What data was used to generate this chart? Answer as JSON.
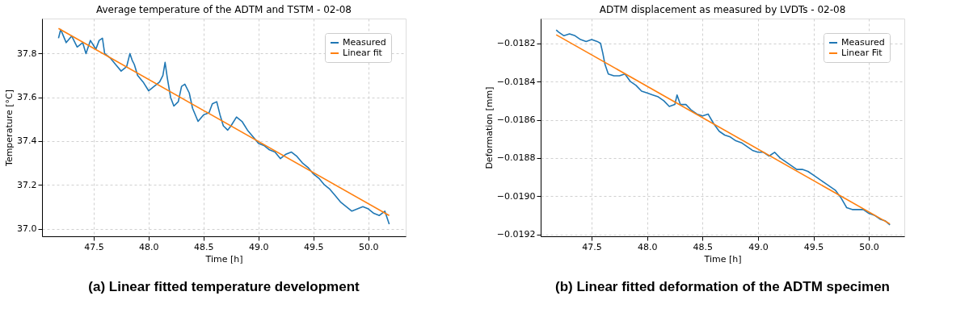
{
  "chart_data": [
    {
      "type": "line",
      "title": "Average temperature of the ADTM and TSTM - 02-08",
      "xlabel": "Time [h]",
      "ylabel": "Temperature [°C]",
      "annotations": [
        "(a) Linear fitted temperature development"
      ],
      "xlim": [
        47.03,
        50.34
      ],
      "xticks": [
        47.5,
        {
          "value": 48,
          "label": "48.0"
        },
        48.5,
        {
          "value": 49,
          "label": "49.0"
        },
        49.5,
        {
          "value": 50,
          "label": "50.0"
        }
      ],
      "ylim": [
        36.965,
        37.96
      ],
      "yticks": [
        {
          "value": 37,
          "label": "37.0"
        },
        37.2,
        37.4,
        37.6,
        37.8
      ],
      "grid": true,
      "legend": "top right",
      "line_style": "solid",
      "marker": "none",
      "series": [
        {
          "name": "Measured",
          "color": "#1f77b4",
          "x": [
            47.18,
            47.2,
            47.25,
            47.3,
            47.35,
            47.4,
            47.43,
            47.47,
            47.52,
            47.55,
            47.58,
            47.6,
            47.65,
            47.7,
            47.75,
            47.8,
            47.83,
            47.85,
            47.87,
            47.9,
            47.95,
            48.0,
            48.05,
            48.1,
            48.13,
            48.15,
            48.17,
            48.2,
            48.23,
            48.27,
            48.3,
            48.33,
            48.37,
            48.4,
            48.45,
            48.5,
            48.55,
            48.58,
            48.62,
            48.65,
            48.68,
            48.72,
            48.75,
            48.8,
            48.85,
            48.9,
            48.95,
            49.0,
            49.05,
            49.1,
            49.15,
            49.2,
            49.25,
            49.3,
            49.35,
            49.4,
            49.45,
            49.5,
            49.55,
            49.6,
            49.65,
            49.7,
            49.75,
            49.8,
            49.85,
            49.9,
            49.95,
            50.0,
            50.05,
            50.1,
            50.15,
            50.19
          ],
          "values": [
            37.87,
            37.91,
            37.85,
            37.88,
            37.83,
            37.85,
            37.8,
            37.86,
            37.82,
            37.86,
            37.87,
            37.8,
            37.78,
            37.75,
            37.72,
            37.74,
            37.8,
            37.77,
            37.75,
            37.7,
            37.67,
            37.63,
            37.65,
            37.67,
            37.7,
            37.76,
            37.69,
            37.6,
            37.56,
            37.58,
            37.65,
            37.66,
            37.62,
            37.55,
            37.49,
            37.52,
            37.53,
            37.57,
            37.58,
            37.52,
            37.47,
            37.45,
            37.47,
            37.51,
            37.49,
            37.45,
            37.42,
            37.39,
            37.38,
            37.36,
            37.35,
            37.32,
            37.34,
            37.35,
            37.33,
            37.3,
            37.28,
            37.25,
            37.23,
            37.2,
            37.18,
            37.15,
            37.12,
            37.1,
            37.08,
            37.09,
            37.1,
            37.09,
            37.07,
            37.06,
            37.08,
            37.02
          ]
        },
        {
          "name": "Linear fit",
          "color": "#ff7f0e",
          "x": [
            47.18,
            50.19
          ],
          "values": [
            37.915,
            37.06
          ]
        }
      ]
    },
    {
      "type": "line",
      "title": "ADTM displacement as measured by LVDTs - 02-08",
      "xlabel": "Time [h]",
      "ylabel": "Deformation [mm]",
      "annotations": [
        "(b) Linear fitted deformation of the ADTM specimen"
      ],
      "xlim": [
        47.04,
        50.32
      ],
      "xticks": [
        47.5,
        {
          "value": 48,
          "label": "48.0"
        },
        48.5,
        {
          "value": 49,
          "label": "49.0"
        },
        49.5,
        {
          "value": 50,
          "label": "50.0"
        }
      ],
      "ylim": [
        -0.01921,
        -0.01807
      ],
      "yticks": [
        {
          "value": -0.0192,
          "label": "−0.0192"
        },
        {
          "value": -0.019,
          "label": "−0.0190"
        },
        {
          "value": -0.0188,
          "label": "−0.0188"
        },
        {
          "value": -0.0186,
          "label": "−0.0186"
        },
        {
          "value": -0.0184,
          "label": "−0.0184"
        },
        {
          "value": -0.0182,
          "label": "−0.0182"
        }
      ],
      "grid": true,
      "legend": "top right",
      "line_style": "solid",
      "marker": "none",
      "series": [
        {
          "name": "Measured",
          "color": "#1f77b4",
          "x": [
            47.18,
            47.2,
            47.25,
            47.3,
            47.35,
            47.4,
            47.45,
            47.5,
            47.55,
            47.58,
            47.6,
            47.62,
            47.65,
            47.7,
            47.75,
            47.8,
            47.85,
            47.9,
            47.95,
            48.0,
            48.05,
            48.1,
            48.15,
            48.2,
            48.25,
            48.27,
            48.3,
            48.35,
            48.4,
            48.45,
            48.5,
            48.55,
            48.6,
            48.65,
            48.7,
            48.75,
            48.8,
            48.85,
            48.9,
            48.95,
            49.0,
            49.05,
            49.1,
            49.15,
            49.2,
            49.25,
            49.3,
            49.35,
            49.4,
            49.45,
            49.5,
            49.55,
            49.6,
            49.65,
            49.7,
            49.75,
            49.8,
            49.85,
            49.9,
            49.95,
            50.0,
            50.05,
            50.1,
            50.15,
            50.19
          ],
          "values": [
            -0.01813,
            -0.01814,
            -0.01816,
            -0.01815,
            -0.01816,
            -0.01818,
            -0.01819,
            -0.01818,
            -0.01819,
            -0.0182,
            -0.01825,
            -0.01831,
            -0.01836,
            -0.01837,
            -0.01837,
            -0.01836,
            -0.0184,
            -0.01842,
            -0.01845,
            -0.01846,
            -0.01847,
            -0.01848,
            -0.0185,
            -0.01853,
            -0.01852,
            -0.01847,
            -0.01852,
            -0.01852,
            -0.01855,
            -0.01857,
            -0.01858,
            -0.01857,
            -0.01862,
            -0.01866,
            -0.01868,
            -0.01869,
            -0.01871,
            -0.01872,
            -0.01874,
            -0.01876,
            -0.01877,
            -0.01877,
            -0.01879,
            -0.01877,
            -0.0188,
            -0.01882,
            -0.01884,
            -0.01886,
            -0.01886,
            -0.01887,
            -0.01889,
            -0.01891,
            -0.01893,
            -0.01895,
            -0.01897,
            -0.01901,
            -0.01906,
            -0.01907,
            -0.01907,
            -0.01907,
            -0.01909,
            -0.0191,
            -0.01912,
            -0.01913,
            -0.01915
          ]
        },
        {
          "name": "Linear Fit",
          "color": "#ff7f0e",
          "x": [
            47.18,
            50.19
          ],
          "values": [
            -0.018155,
            -0.019145
          ]
        }
      ]
    }
  ]
}
